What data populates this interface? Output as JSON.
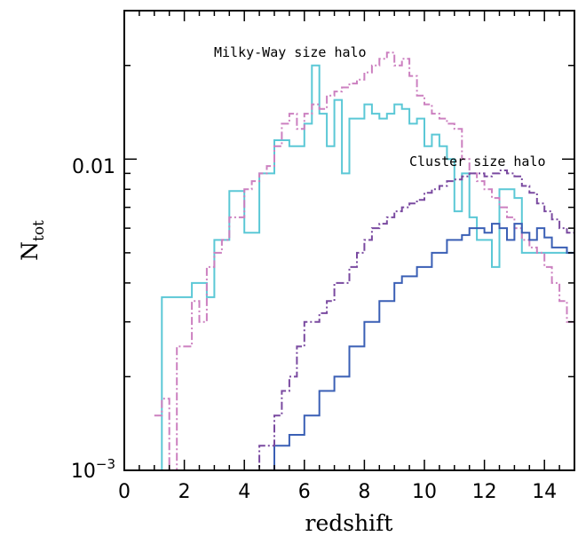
{
  "chart_data": {
    "type": "line",
    "xlabel": "redshift",
    "ylabel_main": "N",
    "ylabel_sub": "tot",
    "xlim": [
      0,
      15
    ],
    "ylim": [
      0.001,
      0.03
    ],
    "yscale": "log",
    "x_ticks": [
      0,
      2,
      4,
      6,
      8,
      10,
      12,
      14
    ],
    "x_tick_labels": [
      "0",
      "2",
      "4",
      "6",
      "8",
      "10",
      "12",
      "14"
    ],
    "y_tick_labels": {
      "y001": "0.01",
      "y0001_base": "10",
      "y0001_exp": "−3"
    },
    "annotations": {
      "milky_way": "Milky-Way size halo",
      "cluster": "Cluster size halo"
    },
    "bin_width": 0.25,
    "series": [
      {
        "id": "mw_solid",
        "color": "#5bc8d6",
        "style": "solid",
        "x_start": 1.0,
        "values": [
          0.0009,
          0.0036,
          0.0036,
          0.0036,
          0.0036,
          0.004,
          0.004,
          0.0036,
          0.0055,
          0.0055,
          0.0079,
          0.0079,
          0.0058,
          0.0058,
          0.009,
          0.009,
          0.0115,
          0.0115,
          0.011,
          0.011,
          0.013,
          0.02,
          0.014,
          0.011,
          0.0155,
          0.009,
          0.0135,
          0.0135,
          0.015,
          0.014,
          0.0135,
          0.014,
          0.015,
          0.0145,
          0.013,
          0.0135,
          0.011,
          0.012,
          0.011,
          0.01,
          0.0068,
          0.009,
          0.0065,
          0.0055,
          0.0055,
          0.0045,
          0.008,
          0.008,
          0.0075,
          0.005,
          0.005,
          0.005,
          0.005,
          0.005,
          0.005,
          0.005,
          0.0009,
          0.0009,
          0.0009,
          0.0009,
          0.0009
        ]
      },
      {
        "id": "mw_dashdot",
        "color": "#cc80c0",
        "style": "dashdot",
        "x_start": 1.0,
        "values": [
          0.0015,
          0.0017,
          0.0009,
          0.0025,
          0.0025,
          0.0035,
          0.003,
          0.0045,
          0.005,
          0.0055,
          0.0065,
          0.0065,
          0.008,
          0.0085,
          0.009,
          0.0095,
          0.011,
          0.013,
          0.014,
          0.0125,
          0.014,
          0.015,
          0.0145,
          0.016,
          0.0165,
          0.017,
          0.0175,
          0.018,
          0.019,
          0.02,
          0.021,
          0.022,
          0.02,
          0.021,
          0.0185,
          0.016,
          0.015,
          0.014,
          0.0135,
          0.013,
          0.0125,
          0.01,
          0.009,
          0.0085,
          0.008,
          0.0075,
          0.007,
          0.0065,
          0.006,
          0.0055,
          0.0052,
          0.005,
          0.0045,
          0.004,
          0.0035,
          0.003,
          0.0009,
          0.0018,
          0.0009,
          0.0018,
          0.0015
        ]
      },
      {
        "id": "cl_solid",
        "color": "#3a5fb5",
        "style": "solid",
        "x_start": 4.75,
        "values": [
          0.0009,
          0.0012,
          0.0012,
          0.0013,
          0.0013,
          0.0015,
          0.0015,
          0.0018,
          0.0018,
          0.002,
          0.002,
          0.0025,
          0.0025,
          0.003,
          0.003,
          0.0035,
          0.0035,
          0.004,
          0.0042,
          0.0042,
          0.0045,
          0.0045,
          0.005,
          0.005,
          0.0055,
          0.0055,
          0.0057,
          0.006,
          0.006,
          0.0058,
          0.0062,
          0.006,
          0.0055,
          0.0062,
          0.0058,
          0.0055,
          0.006,
          0.0056,
          0.0052,
          0.0052,
          0.005,
          0.0048,
          0.0046,
          0.0044,
          0.0042,
          0.004,
          0.0038,
          0.0036,
          0.0034,
          0.0032,
          0.003
        ]
      },
      {
        "id": "cl_dashdot",
        "color": "#7a4aa0",
        "style": "dashdot",
        "x_start": 4.25,
        "values": [
          0.001,
          0.0012,
          0.0012,
          0.0015,
          0.0018,
          0.002,
          0.0025,
          0.003,
          0.003,
          0.0032,
          0.0035,
          0.004,
          0.004,
          0.0045,
          0.005,
          0.0055,
          0.006,
          0.0062,
          0.0065,
          0.0068,
          0.007,
          0.0072,
          0.0074,
          0.0078,
          0.008,
          0.0082,
          0.0085,
          0.0086,
          0.0088,
          0.009,
          0.009,
          0.0088,
          0.009,
          0.0092,
          0.009,
          0.0088,
          0.0082,
          0.0078,
          0.0072,
          0.0068,
          0.0064,
          0.006,
          0.0058,
          0.0055,
          0.0052,
          0.0048,
          0.0046,
          0.0044,
          0.0042,
          0.004,
          0.0038,
          0.0036,
          0.0033
        ]
      }
    ]
  }
}
